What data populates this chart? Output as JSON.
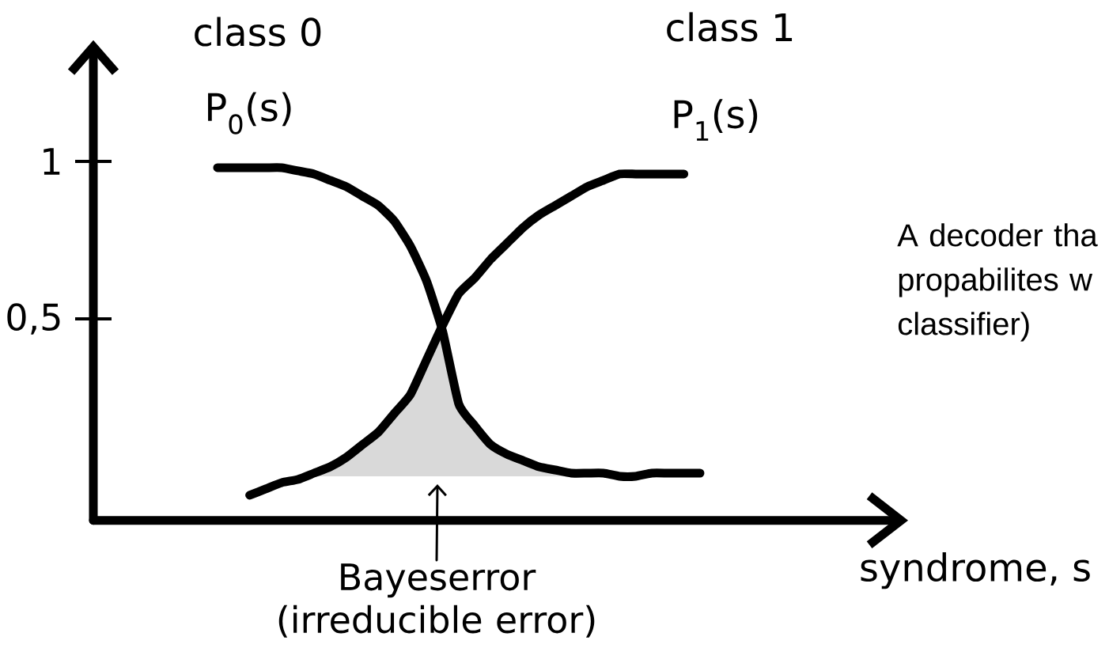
{
  "chart_data": {
    "type": "line",
    "xlabel": "syndrome, s",
    "categories": [
      null,
      null,
      null,
      null,
      null,
      null,
      null,
      null,
      null,
      null,
      null,
      null,
      null,
      null,
      null,
      null,
      null,
      null,
      null,
      null,
      null,
      null,
      null,
      null,
      null,
      null,
      null,
      null,
      null,
      null,
      null
    ],
    "ylim": [
      -0.14,
      1.35
    ],
    "yticks": [
      {
        "value": 0.5,
        "label": "0,5"
      },
      1
    ],
    "tick_labels": "y",
    "marker": "none",
    "series": [
      {
        "name": "P$_{0}$(s)",
        "color": "#000000",
        "values": [
          0.98,
          0.98,
          0.98,
          0.98,
          0.98,
          0.97,
          0.96,
          0.94,
          0.92,
          0.89,
          0.86,
          0.81,
          0.73,
          0.62,
          0.46,
          0.23,
          0.16,
          0.1,
          0.07,
          0.05,
          0.03,
          0.02,
          0.01,
          0.01,
          0.01,
          0.0,
          0.0,
          0.01,
          0.01,
          0.01,
          0.01
        ]
      },
      {
        "name": "P$_{1}$(s)",
        "color": "#000000",
        "values": [
          null,
          null,
          -0.06,
          -0.04,
          -0.02,
          -0.01,
          0.01,
          0.03,
          0.06,
          0.1,
          0.14,
          0.2,
          0.26,
          0.37,
          0.48,
          0.58,
          0.63,
          0.69,
          0.74,
          0.79,
          0.83,
          0.86,
          0.89,
          0.92,
          0.94,
          0.96,
          0.96,
          0.96,
          0.96,
          0.96,
          null
        ]
      },
      {
        "type": "area",
        "color": "#d9d9d9",
        "values": [
          null,
          null,
          null,
          null,
          null,
          -0.01,
          0.01,
          0.03,
          0.06,
          0.1,
          0.14,
          0.2,
          0.26,
          0.37,
          0.46,
          0.23,
          0.16,
          0.1,
          0.07,
          0.05,
          0.03,
          0.02,
          0.01,
          0.01,
          0.01,
          0.0,
          0.0,
          null,
          null,
          null,
          null
        ]
      }
    ],
    "annotations": [
      "class 0",
      "class 1",
      "Bayeserror (irreducible error)",
      "A decoder tha propabilites w classifier)"
    ]
  }
}
